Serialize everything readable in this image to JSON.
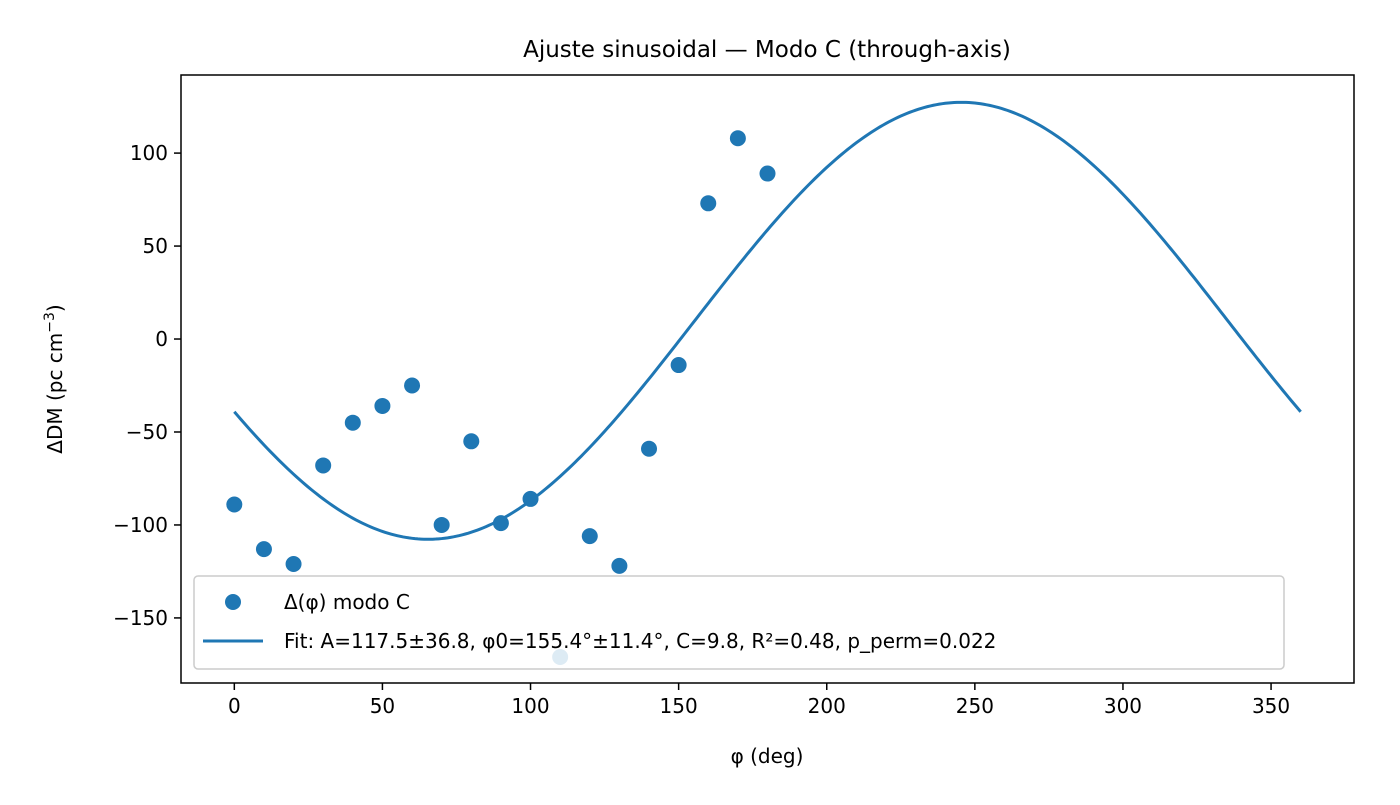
{
  "chart_data": {
    "type": "scatter",
    "title": "Ajuste sinusoidal — Modo C (through-axis)",
    "xlabel": "φ (deg)",
    "ylabel_main": "ΔDM (pc cm",
    "ylabel_sup": "−3",
    "ylabel_close": ")",
    "xlim": [
      -18,
      378
    ],
    "ylim": [
      -185,
      142
    ],
    "xticks": [
      0,
      50,
      100,
      150,
      200,
      250,
      300,
      350
    ],
    "xtick_labels": [
      "0",
      "50",
      "100",
      "150",
      "200",
      "250",
      "300",
      "350"
    ],
    "yticks": [
      -150,
      -100,
      -50,
      0,
      50,
      100
    ],
    "ytick_labels": [
      "−150",
      "−100",
      "−50",
      "0",
      "50",
      "100"
    ],
    "grid": false,
    "legend_position": "lower-left",
    "series": [
      {
        "name": "Δ(φ) modo C",
        "kind": "scatter",
        "color": "#1f77b4",
        "x": [
          0,
          10,
          20,
          30,
          40,
          50,
          60,
          70,
          80,
          90,
          100,
          110,
          120,
          130,
          140,
          150,
          160,
          170,
          180
        ],
        "y": [
          -89,
          -113,
          -121,
          -68,
          -45,
          -36,
          -25,
          -100,
          -55,
          -99,
          -86,
          -171,
          -106,
          -122,
          -59,
          -14,
          73,
          108,
          89
        ]
      },
      {
        "name": "Fit: A=117.5±36.8, φ0=155.4°±11.4°, C=9.8, R²=0.48, p_perm=0.022",
        "kind": "line",
        "color": "#1f77b4",
        "function": "C + A*sin(phi - phi0)",
        "A": 117.5,
        "phi0": 155.4,
        "C": 9.8,
        "x_range": [
          0,
          360
        ]
      }
    ]
  }
}
